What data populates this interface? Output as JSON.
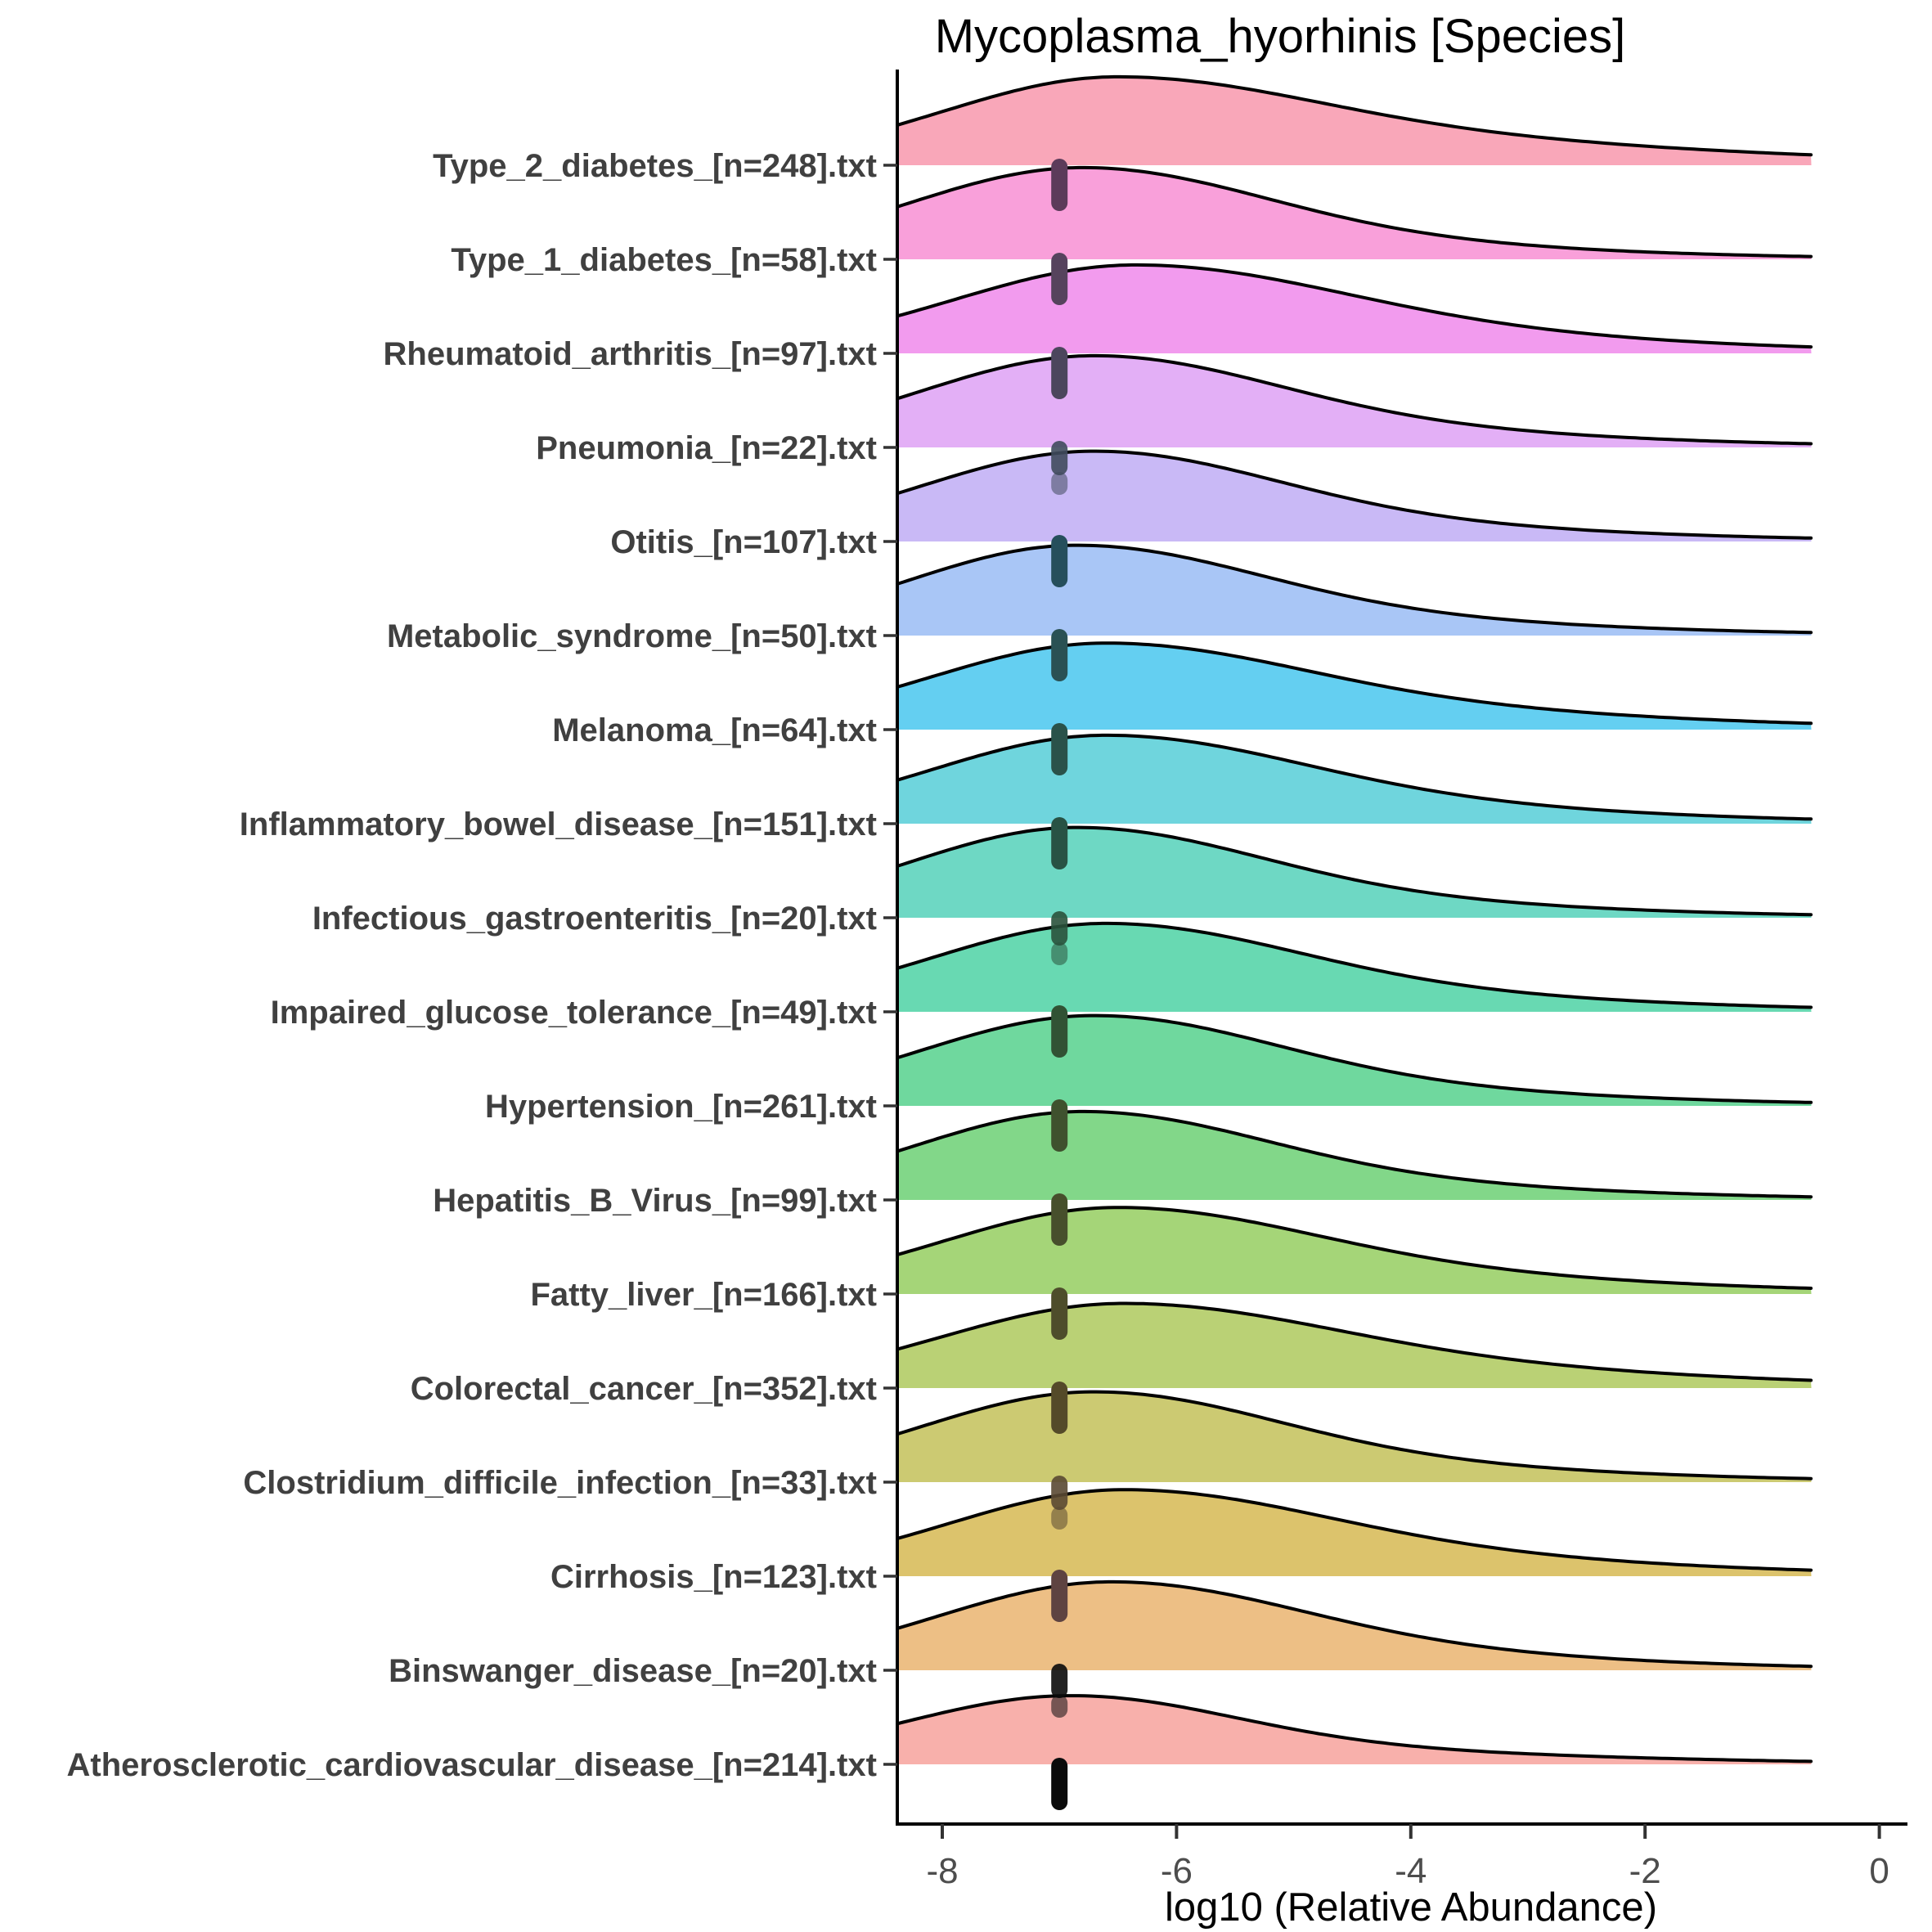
{
  "title": "Mycoplasma_hyorhinis [Species]",
  "chart_data": {
    "type": "ridgeline-density",
    "title": "Mycoplasma_hyorhinis [Species]",
    "xlabel": "log10 (Relative Abundance)",
    "xlim": [
      -8.39,
      0.25
    ],
    "curve_end_x": -0.58,
    "xticks": [
      -8,
      -6,
      -4,
      -2,
      0
    ],
    "grid": "off",
    "legend": "none",
    "marker_x": -7,
    "marker_note": "dark dashed tick of stacked sample points at log10=-7 below each baseline",
    "axis_color": "#000000",
    "tick_label_color": "#4d4d4d",
    "category_label_color": "#404040",
    "outline_color": "#000000",
    "series": [
      {
        "label": "Type_2_diabetes_[n=248].txt",
        "n": 248,
        "fill": "#F9A7B9",
        "marker_color": "#5C3B5A",
        "density": {
          "mu": -6.5,
          "peak": 0.94,
          "sigma_left": 1.5,
          "sigma_right": 1.6,
          "tail_weight": 0.45,
          "tail_sigma": 3.6
        }
      },
      {
        "label": "Type_1_diabetes_[n=58].txt",
        "n": 58,
        "fill": "#F9A0DA",
        "marker_color": "#56435D",
        "density": {
          "mu": -6.8,
          "peak": 0.975,
          "sigma_left": 1.5,
          "sigma_right": 1.5,
          "tail_weight": 0.3,
          "tail_sigma": 2.9
        }
      },
      {
        "label": "Rheumatoid_arthritis_[n=97].txt",
        "n": 97,
        "fill": "#F29BEE",
        "marker_color": "#4C465D",
        "density": {
          "mu": -6.35,
          "peak": 0.94,
          "sigma_left": 1.55,
          "sigma_right": 1.7,
          "tail_weight": 0.36,
          "tail_sigma": 3.2
        }
      },
      {
        "label": "Pneumonia_[n=22].txt",
        "n": 22,
        "fill": "#E3AFF6",
        "marker_color": "#404B5D",
        "density": {
          "mu": -6.7,
          "peak": 0.975,
          "sigma_left": 1.5,
          "sigma_right": 1.5,
          "tail_weight": 0.32,
          "tail_sigma": 3.0
        }
      },
      {
        "label": "Otitis_[n=107].txt",
        "n": 107,
        "fill": "#C9B9F6",
        "marker_color": "#264F5C",
        "density": {
          "mu": -6.7,
          "peak": 0.96,
          "sigma_left": 1.5,
          "sigma_right": 1.5,
          "tail_weight": 0.3,
          "tail_sigma": 3.0
        }
      },
      {
        "label": "Metabolic_syndrome_[n=50].txt",
        "n": 50,
        "fill": "#A9C6F6",
        "marker_color": "#2A5154",
        "density": {
          "mu": -6.85,
          "peak": 0.96,
          "sigma_left": 1.45,
          "sigma_right": 1.5,
          "tail_weight": 0.3,
          "tail_sigma": 3.0
        }
      },
      {
        "label": "Melanoma_[n=64].txt",
        "n": 64,
        "fill": "#64CFF1",
        "marker_color": "#2A524A",
        "density": {
          "mu": -6.6,
          "peak": 0.92,
          "sigma_left": 1.5,
          "sigma_right": 1.6,
          "tail_weight": 0.38,
          "tail_sigma": 3.3
        }
      },
      {
        "label": "Inflammatory_bowel_disease_[n=151].txt",
        "n": 151,
        "fill": "#6FD5DD",
        "marker_color": "#285244",
        "density": {
          "mu": -6.6,
          "peak": 0.94,
          "sigma_left": 1.5,
          "sigma_right": 1.6,
          "tail_weight": 0.34,
          "tail_sigma": 3.1
        }
      },
      {
        "label": "Infectious_gastroenteritis_[n=20].txt",
        "n": 20,
        "fill": "#6ED8C4",
        "marker_color": "#2A523C",
        "density": {
          "mu": -6.85,
          "peak": 0.96,
          "sigma_left": 1.45,
          "sigma_right": 1.5,
          "tail_weight": 0.3,
          "tail_sigma": 3.0
        }
      },
      {
        "label": "Impaired_glucose_tolerance_[n=49].txt",
        "n": 49,
        "fill": "#68D9B2",
        "marker_color": "#315234",
        "density": {
          "mu": -6.6,
          "peak": 0.94,
          "sigma_left": 1.5,
          "sigma_right": 1.55,
          "tail_weight": 0.33,
          "tail_sigma": 3.1
        }
      },
      {
        "label": "Hypertension_[n=261].txt",
        "n": 261,
        "fill": "#6FD89E",
        "marker_color": "#3F512E",
        "density": {
          "mu": -6.7,
          "peak": 0.96,
          "sigma_left": 1.5,
          "sigma_right": 1.5,
          "tail_weight": 0.3,
          "tail_sigma": 3.0
        }
      },
      {
        "label": "Hepatitis_B_Virus_[n=99].txt",
        "n": 99,
        "fill": "#82D789",
        "marker_color": "#474F2C",
        "density": {
          "mu": -6.8,
          "peak": 0.94,
          "sigma_left": 1.45,
          "sigma_right": 1.5,
          "tail_weight": 0.3,
          "tail_sigma": 3.0
        }
      },
      {
        "label": "Fatty_liver_[n=166].txt",
        "n": 166,
        "fill": "#A5D578",
        "marker_color": "#4E4D2B",
        "density": {
          "mu": -6.5,
          "peak": 0.92,
          "sigma_left": 1.5,
          "sigma_right": 1.6,
          "tail_weight": 0.36,
          "tail_sigma": 3.2
        }
      },
      {
        "label": "Colorectal_cancer_[n=352].txt",
        "n": 352,
        "fill": "#BAD175",
        "marker_color": "#544A29",
        "density": {
          "mu": -6.45,
          "peak": 0.9,
          "sigma_left": 1.55,
          "sigma_right": 1.7,
          "tail_weight": 0.4,
          "tail_sigma": 3.4
        }
      },
      {
        "label": "Clostridium_difficile_infection_[n=33].txt",
        "n": 33,
        "fill": "#CCCA72",
        "marker_color": "#5A4933",
        "density": {
          "mu": -6.7,
          "peak": 0.96,
          "sigma_left": 1.5,
          "sigma_right": 1.5,
          "tail_weight": 0.31,
          "tail_sigma": 3.0
        }
      },
      {
        "label": "Cirrhosis_[n=123].txt",
        "n": 123,
        "fill": "#DCC36C",
        "marker_color": "#5E4341",
        "density": {
          "mu": -6.45,
          "peak": 0.92,
          "sigma_left": 1.5,
          "sigma_right": 1.65,
          "tail_weight": 0.37,
          "tail_sigma": 3.2
        }
      },
      {
        "label": "Binswanger_disease_[n=20].txt",
        "n": 20,
        "fill": "#EDBF85",
        "marker_color": "#0B0B0B",
        "density": {
          "mu": -6.55,
          "peak": 0.94,
          "sigma_left": 1.5,
          "sigma_right": 1.55,
          "tail_weight": 0.32,
          "tail_sigma": 3.0
        }
      },
      {
        "label": "Atherosclerotic_cardiovascular_disease_[n=214].txt",
        "n": 214,
        "fill": "#F8B0AB",
        "marker_color": "#0B0B0B",
        "density": {
          "mu": -6.9,
          "peak": 0.73,
          "sigma_left": 1.45,
          "sigma_right": 1.35,
          "tail_weight": 0.3,
          "tail_sigma": 3.2
        }
      }
    ]
  }
}
